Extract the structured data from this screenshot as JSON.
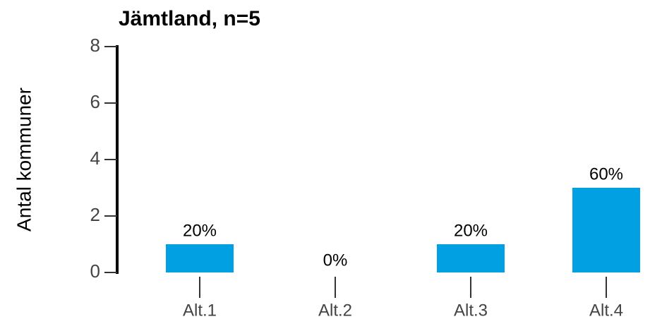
{
  "chart_data": {
    "type": "bar",
    "title": "Jämtland, n=5",
    "ylabel": "Antal kommuner",
    "categories": [
      "Alt.1",
      "Alt.2",
      "Alt.3",
      "Alt.4"
    ],
    "values": [
      1,
      0,
      1,
      3
    ],
    "value_labels": [
      "20%",
      "0%",
      "20%",
      "60%"
    ],
    "color": "#00a0e3",
    "ylim": [
      0,
      8
    ],
    "yticks": [
      0,
      2,
      4,
      6,
      8
    ],
    "grid": false
  }
}
